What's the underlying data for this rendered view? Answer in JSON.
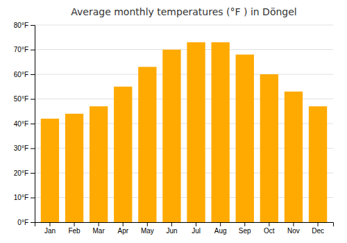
{
  "chart_data": {
    "type": "bar",
    "title": "Average monthly temperatures (°F ) in Döngel",
    "categories": [
      "Jan",
      "Feb",
      "Mar",
      "Apr",
      "May",
      "Jun",
      "Jul",
      "Aug",
      "Sep",
      "Oct",
      "Nov",
      "Dec"
    ],
    "values": [
      42,
      44,
      47,
      55,
      63,
      70,
      73,
      73,
      68,
      60,
      53,
      47
    ],
    "color": "#FFAA00",
    "ylim": [
      0,
      80
    ],
    "yticks": [
      {
        "value": 0,
        "label": "0°F"
      },
      {
        "value": 10,
        "label": "10°F"
      },
      {
        "value": 20,
        "label": "20°F"
      },
      {
        "value": 30,
        "label": "30°F"
      },
      {
        "value": 40,
        "label": "40°F"
      },
      {
        "value": 50,
        "label": "50°F"
      },
      {
        "value": 60,
        "label": "60°F"
      },
      {
        "value": 70,
        "label": "70°F"
      },
      {
        "value": 80,
        "label": "80°F"
      }
    ],
    "grid": true
  }
}
